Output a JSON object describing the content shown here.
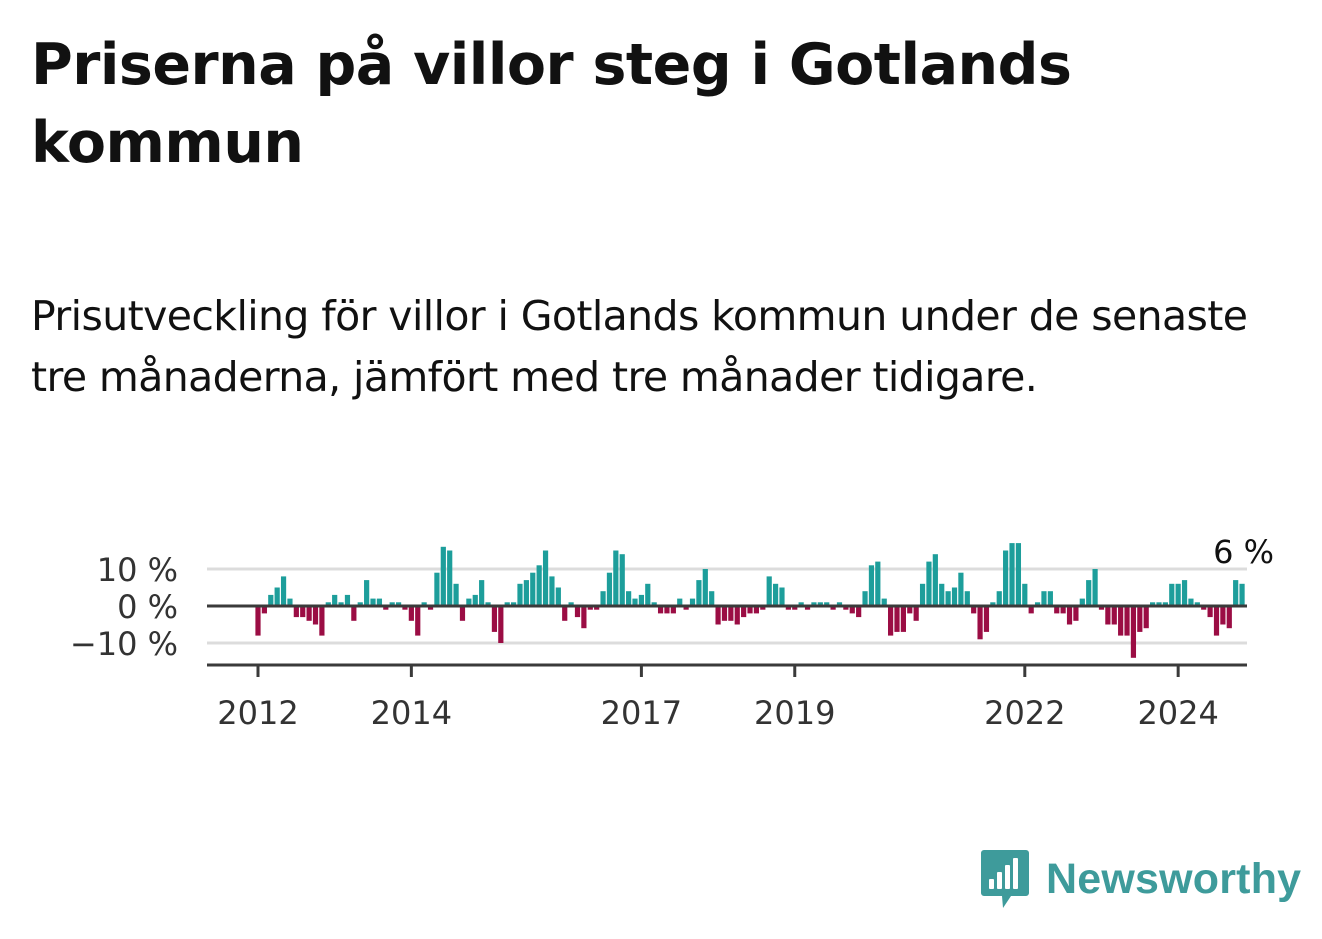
{
  "title": "Priserna på villor steg i Gotlands kommun",
  "subtitle": "Prisutveckling för villor i Gotlands kommun under de senaste tre månaderna, jämfört med tre månader tidigare.",
  "brand": {
    "name": "Newsworthy",
    "icon": "bar-chart-icon",
    "color": "#3e9b9b"
  },
  "chart_data": {
    "type": "bar",
    "x_unit": "month",
    "start": "2012-01",
    "ylim": [
      -15,
      17
    ],
    "yticks": [
      -10,
      0,
      10
    ],
    "ytick_labels": [
      "−10 %",
      "0 %",
      "10 %"
    ],
    "xtick_labels": [
      "2012",
      "2014",
      "2017",
      "2019",
      "2022",
      "2024"
    ],
    "grid": true,
    "positive_color": "#1d9e9b",
    "negative_color": "#9b0d44",
    "last_label": "6 %",
    "values": [
      -8,
      -2,
      3,
      5,
      8,
      2,
      -3,
      -3,
      -4,
      -5,
      -8,
      1,
      3,
      1,
      3,
      -4,
      1,
      7,
      2,
      2,
      -1,
      1,
      1,
      -1,
      -4,
      -8,
      1,
      -1,
      9,
      16,
      15,
      6,
      -4,
      2,
      3,
      7,
      1,
      -7,
      -10,
      1,
      1,
      6,
      7,
      9,
      11,
      15,
      8,
      5,
      -4,
      1,
      -3,
      -6,
      -1,
      -1,
      4,
      9,
      15,
      14,
      4,
      2,
      3,
      6,
      1,
      -2,
      -2,
      -2,
      2,
      -1,
      2,
      7,
      10,
      4,
      -5,
      -4,
      -4,
      -5,
      -3,
      -2,
      -2,
      -1,
      8,
      6,
      5,
      -1,
      -1,
      1,
      -1,
      1,
      1,
      1,
      -1,
      1,
      -1,
      -2,
      -3,
      4,
      11,
      12,
      2,
      -8,
      -7,
      -7,
      -2,
      -4,
      6,
      12,
      14,
      6,
      4,
      5,
      9,
      4,
      -2,
      -9,
      -7,
      1,
      4,
      15,
      17,
      17,
      6,
      -2,
      1,
      4,
      4,
      -2,
      -2,
      -5,
      -4,
      2,
      7,
      10,
      -1,
      -5,
      -5,
      -8,
      -8,
      -14,
      -7,
      -6,
      1,
      1,
      1,
      6,
      6,
      7,
      2,
      1,
      -1,
      -3,
      -8,
      -5,
      -6,
      7,
      6
    ]
  }
}
